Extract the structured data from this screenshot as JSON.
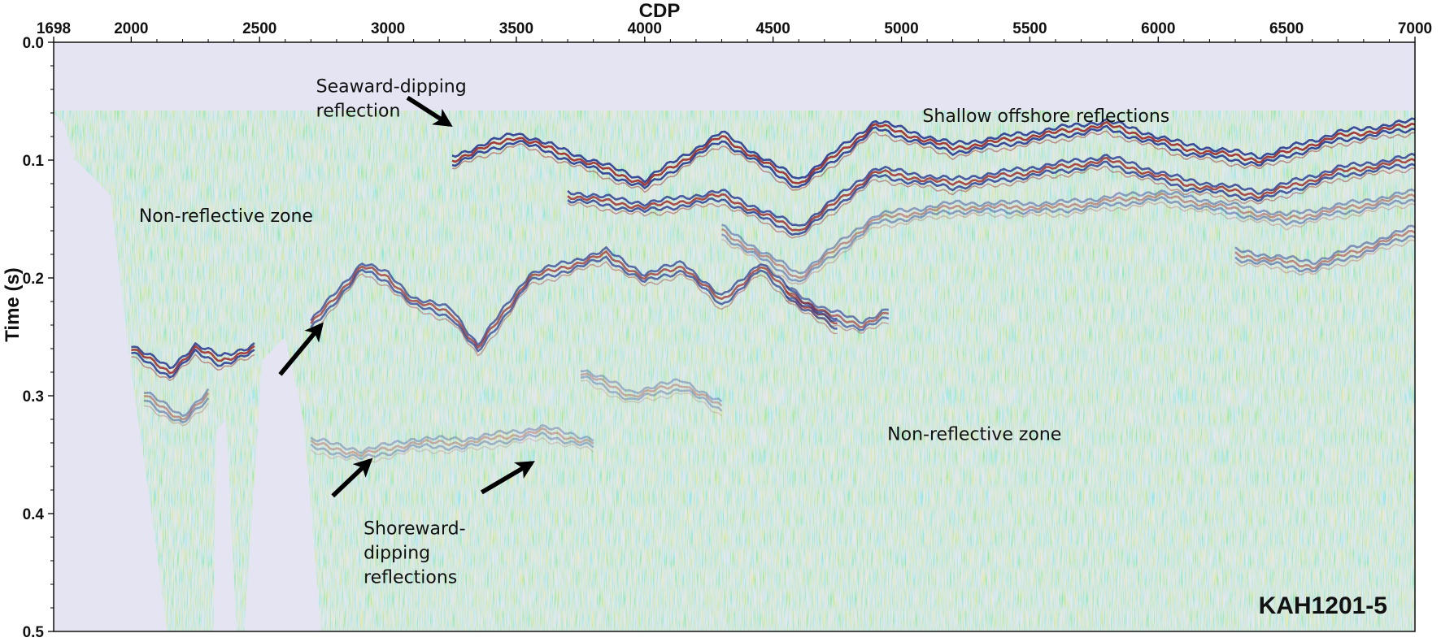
{
  "chart_data": {
    "type": "heatmap",
    "title": "",
    "xlabel": "CDP",
    "ylabel": "Time (s)",
    "x_axis_position": "top",
    "xlim": [
      1698,
      7000
    ],
    "ylim": [
      0.0,
      0.5
    ],
    "y_inverted": true,
    "x_ticks": [
      1698,
      2000,
      2500,
      3000,
      3500,
      4000,
      4500,
      5000,
      5500,
      6000,
      6500,
      7000
    ],
    "x_tick_labels": [
      "1698",
      "2000",
      "2500",
      "3000",
      "3500",
      "4000",
      "4500",
      "5000",
      "5500",
      "6000",
      "6500",
      "7000"
    ],
    "y_ticks": [
      0.0,
      0.1,
      0.2,
      0.3,
      0.4,
      0.5
    ],
    "y_tick_labels": [
      "0.0",
      "0.1",
      "0.2",
      "0.3",
      "0.4",
      "0.5"
    ],
    "line_id": "KAH1201-5",
    "colors": {
      "positive": "#9a1c1c",
      "negative": "#1f2f8c",
      "background": "#e6e6f4",
      "water": "#e4e4f3"
    },
    "water_bottom": [
      {
        "cdp": 1698,
        "time": 0.058
      },
      {
        "cdp": 7000,
        "time": 0.058
      }
    ],
    "no_data_zones": [
      {
        "points": [
          [
            1698,
            0.06
          ],
          [
            1740,
            0.07
          ],
          [
            1780,
            0.1
          ],
          [
            1830,
            0.11
          ],
          [
            1920,
            0.13
          ],
          [
            2000,
            0.28
          ],
          [
            2080,
            0.4
          ],
          [
            2140,
            0.5
          ],
          [
            1698,
            0.5
          ]
        ]
      },
      {
        "points": [
          [
            2320,
            0.5
          ],
          [
            2330,
            0.33
          ],
          [
            2370,
            0.32
          ],
          [
            2410,
            0.5
          ]
        ]
      },
      {
        "points": [
          [
            2440,
            0.5
          ],
          [
            2510,
            0.27
          ],
          [
            2600,
            0.25
          ],
          [
            2670,
            0.32
          ],
          [
            2740,
            0.5
          ]
        ]
      }
    ],
    "annotations": [
      {
        "lines": [
          "Seaward-dipping",
          "reflection"
        ],
        "cdp": 2720,
        "time": 0.03
      },
      {
        "lines": [
          "Shallow offshore reflections"
        ],
        "cdp": 5082,
        "time": 0.055
      },
      {
        "lines": [
          "Non-reflective zone"
        ],
        "cdp": 2030,
        "time": 0.14
      },
      {
        "lines": [
          "Non-reflective zone"
        ],
        "cdp": 4945,
        "time": 0.325
      },
      {
        "lines": [
          "Shoreward-",
          "dipping",
          "reflections"
        ],
        "cdp": 2905,
        "time": 0.405
      }
    ],
    "arrows": [
      {
        "from": [
          3076,
          0.047
        ],
        "to": [
          3240,
          0.07
        ]
      },
      {
        "from": [
          2580,
          0.282
        ],
        "to": [
          2740,
          0.24
        ]
      },
      {
        "from": [
          2785,
          0.385
        ],
        "to": [
          2930,
          0.355
        ]
      },
      {
        "from": [
          3365,
          0.382
        ],
        "to": [
          3560,
          0.357
        ]
      }
    ],
    "reflection_bands": [
      {
        "points": [
          [
            3250,
            0.1
          ],
          [
            3500,
            0.08
          ],
          [
            3750,
            0.1
          ],
          [
            4000,
            0.12
          ],
          [
            4300,
            0.08
          ],
          [
            4600,
            0.12
          ],
          [
            4900,
            0.07
          ],
          [
            5200,
            0.09
          ],
          [
            5500,
            0.08
          ],
          [
            5800,
            0.07
          ],
          [
            6100,
            0.09
          ],
          [
            6400,
            0.1
          ],
          [
            6700,
            0.08
          ],
          [
            7000,
            0.07
          ]
        ],
        "amplitude": 1.0
      },
      {
        "points": [
          [
            3700,
            0.13
          ],
          [
            4000,
            0.14
          ],
          [
            4300,
            0.13
          ],
          [
            4600,
            0.16
          ],
          [
            4900,
            0.11
          ],
          [
            5200,
            0.12
          ],
          [
            5500,
            0.11
          ],
          [
            5800,
            0.1
          ],
          [
            6100,
            0.12
          ],
          [
            6400,
            0.13
          ],
          [
            6700,
            0.11
          ],
          [
            7000,
            0.1
          ]
        ],
        "amplitude": 0.9
      },
      {
        "points": [
          [
            4300,
            0.16
          ],
          [
            4600,
            0.2
          ],
          [
            4900,
            0.15
          ],
          [
            5200,
            0.14
          ],
          [
            5600,
            0.14
          ],
          [
            6000,
            0.13
          ],
          [
            6500,
            0.15
          ],
          [
            7000,
            0.13
          ]
        ],
        "amplitude": 0.5
      },
      {
        "points": [
          [
            6300,
            0.18
          ],
          [
            6600,
            0.19
          ],
          [
            7000,
            0.16
          ]
        ],
        "amplitude": 0.55
      },
      {
        "points": [
          [
            2700,
            0.24
          ],
          [
            2900,
            0.19
          ],
          [
            3000,
            0.2
          ],
          [
            3100,
            0.22
          ],
          [
            3250,
            0.23
          ],
          [
            3350,
            0.26
          ],
          [
            3550,
            0.2
          ],
          [
            3700,
            0.19
          ],
          [
            3850,
            0.18
          ],
          [
            4000,
            0.2
          ],
          [
            4150,
            0.19
          ],
          [
            4300,
            0.22
          ],
          [
            4450,
            0.19
          ],
          [
            4600,
            0.22
          ],
          [
            4750,
            0.24
          ]
        ],
        "amplitude": 0.8
      },
      {
        "points": [
          [
            4550,
            0.21
          ],
          [
            4700,
            0.23
          ],
          [
            4850,
            0.24
          ],
          [
            4950,
            0.23
          ]
        ],
        "amplitude": 0.7
      },
      {
        "points": [
          [
            2000,
            0.26
          ],
          [
            2150,
            0.28
          ],
          [
            2250,
            0.26
          ],
          [
            2350,
            0.27
          ],
          [
            2480,
            0.26
          ]
        ],
        "amplitude": 0.95
      },
      {
        "points": [
          [
            2050,
            0.3
          ],
          [
            2200,
            0.32
          ],
          [
            2300,
            0.3
          ]
        ],
        "amplitude": 0.5
      },
      {
        "points": [
          [
            3750,
            0.28
          ],
          [
            3950,
            0.3
          ],
          [
            4150,
            0.29
          ],
          [
            4300,
            0.31
          ]
        ],
        "amplitude": 0.35
      },
      {
        "points": [
          [
            2700,
            0.34
          ],
          [
            2900,
            0.35
          ],
          [
            3100,
            0.34
          ],
          [
            3300,
            0.34
          ],
          [
            3600,
            0.33
          ],
          [
            3800,
            0.34
          ]
        ],
        "amplitude": 0.35
      }
    ]
  }
}
